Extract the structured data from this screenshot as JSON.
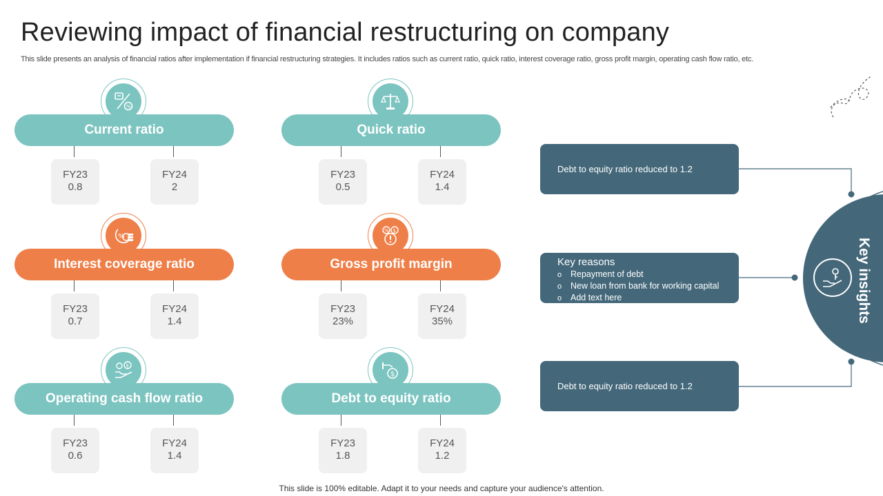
{
  "title": "Reviewing impact of financial restructuring on company",
  "subtitle": "This slide presents an analysis of financial ratios after implementation if financial restructuring strategies. It includes ratios such as current ratio, quick ratio, interest coverage ratio, gross profit margin, operating cash flow ratio, etc.",
  "ratios": [
    {
      "name": "Current ratio",
      "icon": "calculator-percent-icon",
      "color": "#7cc4c0",
      "fy23_label": "FY23",
      "fy23": "0.8",
      "fy24_label": "FY24",
      "fy24": "2"
    },
    {
      "name": "Quick ratio",
      "icon": "balance-scale-icon",
      "color": "#7cc4c0",
      "fy23_label": "FY23",
      "fy23": "0.5",
      "fy24_label": "FY24",
      "fy24": "1.4"
    },
    {
      "name": "Interest coverage ratio",
      "icon": "percent-coins-icon",
      "color": "#ef7f48",
      "fy23_label": "FY23",
      "fy23": "0.7",
      "fy24_label": "FY24",
      "fy24": "1.4"
    },
    {
      "name": "Gross profit margin",
      "icon": "profit-gauge-icon",
      "color": "#ef7f48",
      "fy23_label": "FY23",
      "fy23": "23%",
      "fy24_label": "FY24",
      "fy24": "35%"
    },
    {
      "name": "Operating cash flow ratio",
      "icon": "hand-money-icon",
      "color": "#7cc4c0",
      "fy23_label": "FY23",
      "fy23": "0.6",
      "fy24_label": "FY24",
      "fy24": "1.4"
    },
    {
      "name": "Debt to equity ratio",
      "icon": "hand-dollar-icon",
      "color": "#7cc4c0",
      "fy23_label": "FY23",
      "fy23": "1.8",
      "fy24_label": "FY24",
      "fy24": "1.2"
    }
  ],
  "insights": {
    "top": "Debt to equity ratio reduced to 1.2",
    "reasons_heading": "Key reasons",
    "reasons": [
      "Repayment of debt",
      "New loan from bank for working capital",
      "Add text here"
    ],
    "bottom": "Debt to equity ratio reduced to 1.2",
    "circle_label": "Key insights",
    "circle_icon": "hand-key-icon",
    "color": "#44687a"
  },
  "footer": "This slide is 100% editable. Adapt it to your needs and capture your audience's attention."
}
